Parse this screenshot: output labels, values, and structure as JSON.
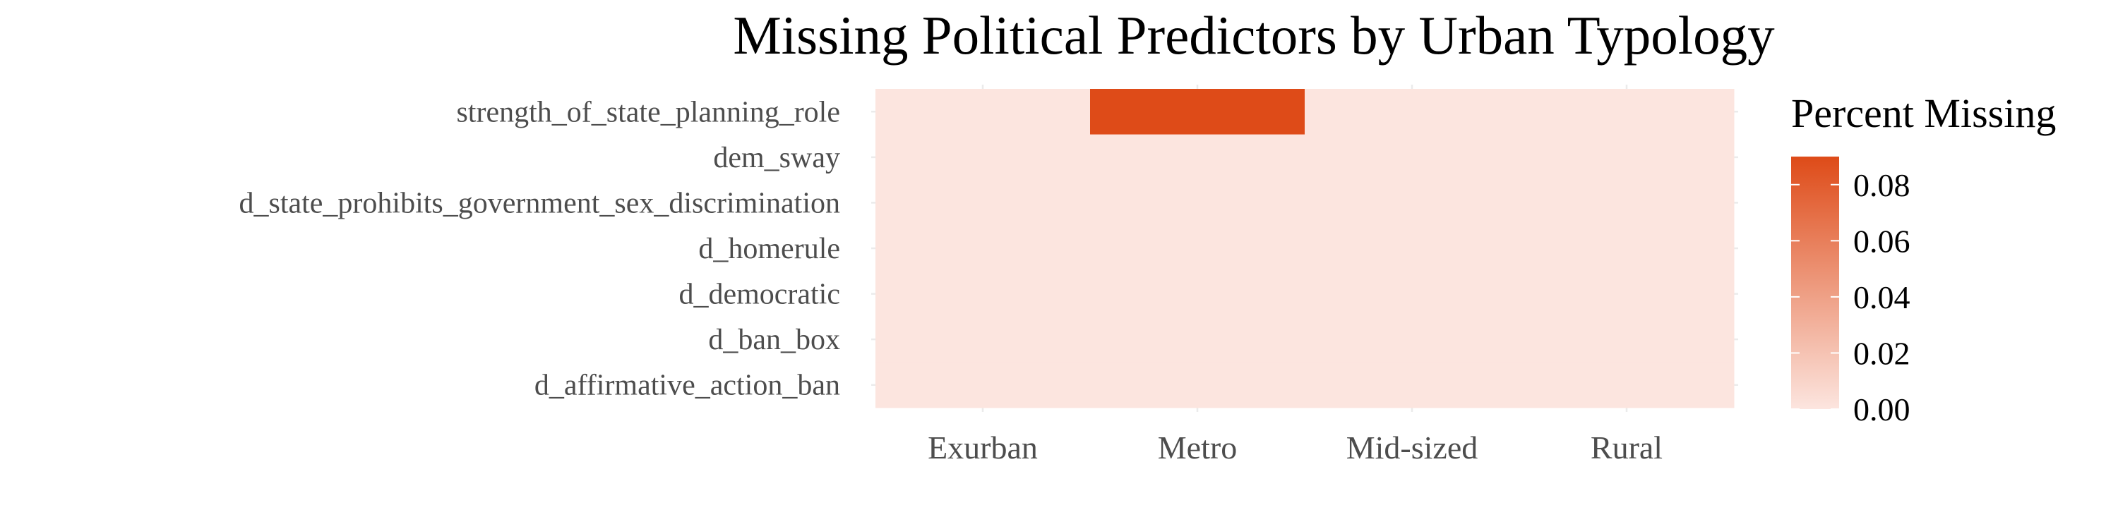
{
  "chart_data": {
    "type": "heatmap",
    "title": "Missing Political Predictors by Urban Typology",
    "xlabel": "",
    "ylabel": "",
    "x_categories": [
      "Exurban",
      "Metro",
      "Mid-sized",
      "Rural"
    ],
    "y_categories": [
      "strength_of_state_planning_role",
      "dem_sway",
      "d_state_prohibits_government_sex_discrimination",
      "d_homerule",
      "d_democratic",
      "d_ban_box",
      "d_affirmative_action_ban"
    ],
    "values": [
      [
        0.0,
        0.09,
        0.0,
        0.0
      ],
      [
        0.0,
        0.0,
        0.0,
        0.0
      ],
      [
        0.0,
        0.0,
        0.0,
        0.0
      ],
      [
        0.0,
        0.0,
        0.0,
        0.0
      ],
      [
        0.0,
        0.0,
        0.0,
        0.0
      ],
      [
        0.0,
        0.0,
        0.0,
        0.0
      ],
      [
        0.0,
        0.0,
        0.0,
        0.0
      ]
    ],
    "color_scale": {
      "low": "#fce5df",
      "high": "#de4b18",
      "range": [
        0,
        0.09
      ]
    },
    "legend": {
      "title": "Percent Missing",
      "labels": [
        "0.08",
        "0.06",
        "0.04",
        "0.02",
        "0.00"
      ],
      "ticks": [
        0.08,
        0.06,
        0.04,
        0.02,
        0.0
      ],
      "placement": "right"
    },
    "grid": true
  }
}
